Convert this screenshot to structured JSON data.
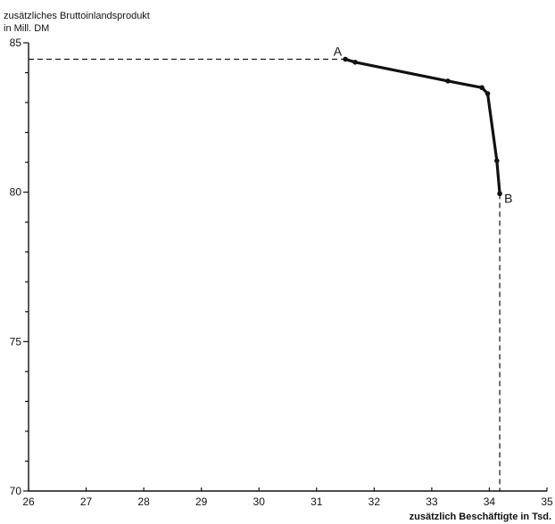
{
  "chart_data": {
    "type": "line",
    "ylabel_lines": [
      "zusätzliches Bruttoinlandsprodukt",
      "in Mill. DM"
    ],
    "xlabel": "zusätzlich Beschäftigte in Tsd.",
    "xlim": [
      26,
      35
    ],
    "ylim": [
      70,
      85
    ],
    "x_ticks": [
      26,
      27,
      28,
      29,
      30,
      31,
      32,
      33,
      34,
      35
    ],
    "x_tick_labels": [
      "26",
      "27",
      "28",
      "29",
      "30",
      "31",
      "32",
      "33",
      "34",
      "35"
    ],
    "y_ticks": [
      70,
      71,
      72,
      73,
      74,
      75,
      76,
      77,
      78,
      79,
      80,
      81,
      82,
      83,
      84,
      85
    ],
    "y_tick_labels": [
      "70",
      "75",
      "80",
      "85"
    ],
    "y_labeled_ticks": [
      70,
      75,
      80,
      85
    ],
    "grid": false,
    "series": [
      {
        "x": [
          31.5,
          31.67,
          33.28,
          33.87,
          33.97,
          34.13,
          34.18
        ],
        "y": [
          84.45,
          84.35,
          83.72,
          83.5,
          83.3,
          81.05,
          79.95
        ]
      }
    ],
    "point_labels": [
      {
        "text": "A",
        "x": 31.5,
        "y": 84.45
      },
      {
        "text": "B",
        "x": 34.18,
        "y": 79.95
      }
    ],
    "guides": [
      {
        "from": [
          26,
          84.45
        ],
        "to": [
          31.5,
          84.45
        ]
      },
      {
        "from": [
          34.18,
          79.95
        ],
        "to": [
          34.18,
          70
        ]
      }
    ]
  }
}
